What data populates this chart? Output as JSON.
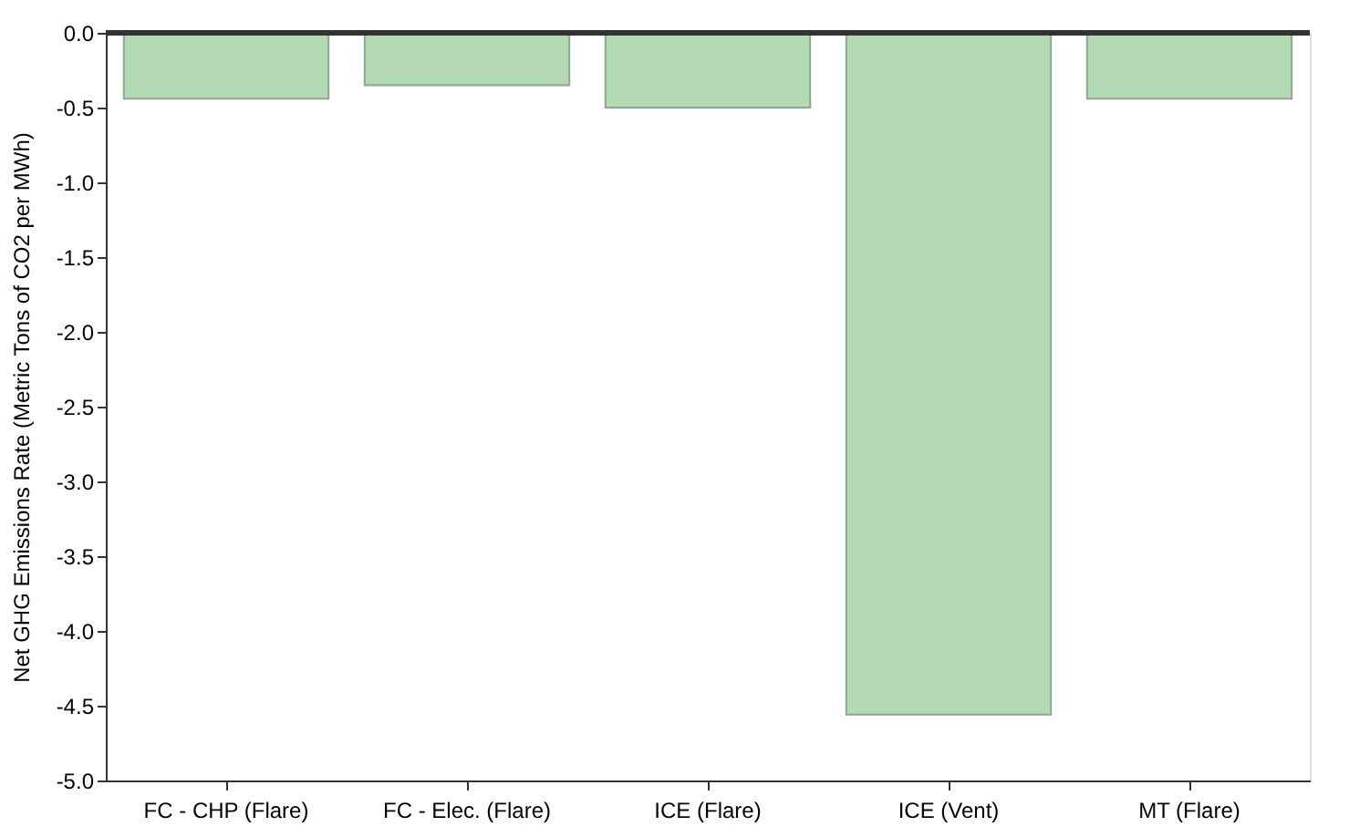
{
  "chart_data": {
    "type": "bar",
    "ylabel": "Net GHG Emissions Rate (Metric Tons of CO2 per MWh)",
    "categories": [
      "FC - CHP (Flare)",
      "FC - Elec. (Flare)",
      "ICE (Flare)",
      "ICE (Vent)",
      "MT (Flare)"
    ],
    "values": [
      -0.44,
      -0.35,
      -0.5,
      -4.56,
      -0.44
    ],
    "color": "#b3dab3",
    "ylim": [
      -5.0,
      0.0
    ],
    "yticks": [
      {
        "value": 0,
        "label": "0.0"
      },
      {
        "value": -0.5,
        "label": "-0.5"
      },
      {
        "value": -1,
        "label": "-1.0"
      },
      {
        "value": -1.5,
        "label": "-1.5"
      },
      {
        "value": -2,
        "label": "-2.0"
      },
      {
        "value": -2.5,
        "label": "-2.5"
      },
      {
        "value": -3,
        "label": "-3.0"
      },
      {
        "value": -3.5,
        "label": "-3.5"
      },
      {
        "value": -4,
        "label": "-4.0"
      },
      {
        "value": -4.5,
        "label": "-4.5"
      },
      {
        "value": -5,
        "label": "-5.0"
      }
    ],
    "ref_lines": [
      {
        "axis": "y",
        "value": 0,
        "color": "#333333"
      }
    ],
    "grid": false
  }
}
